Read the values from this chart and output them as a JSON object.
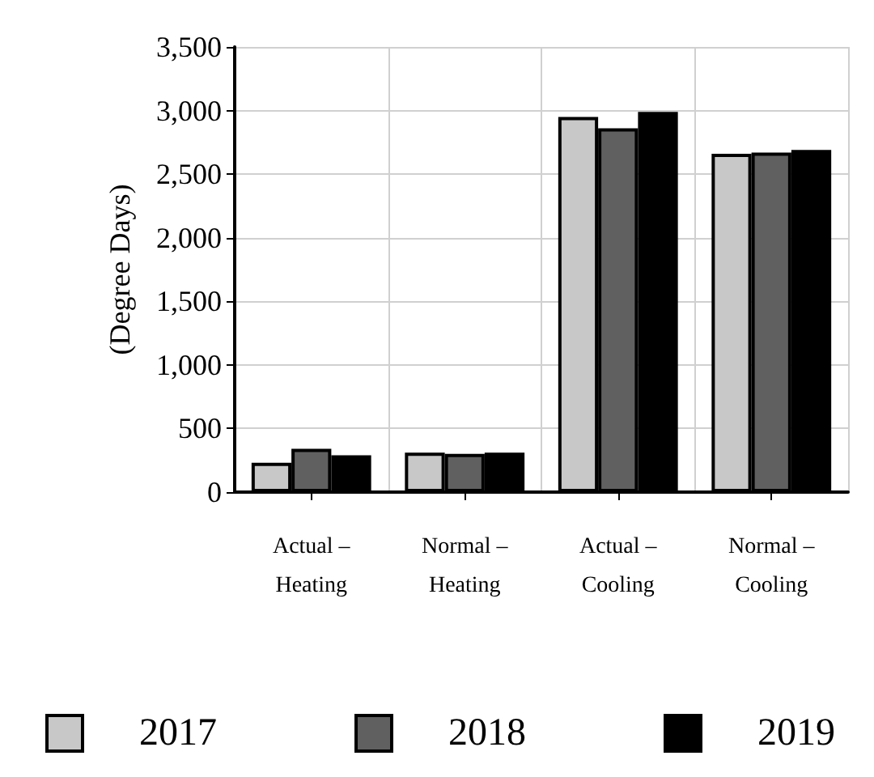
{
  "chart_data": {
    "type": "bar",
    "ylabel": "(Degree Days)",
    "categories": [
      "Actual –\nHeating",
      "Normal –\nHeating",
      "Actual –\nCooling",
      "Normal –\nCooling"
    ],
    "series": [
      {
        "name": "2017",
        "color": "#c8c8c8",
        "values": [
          230,
          310,
          2950,
          2660
        ]
      },
      {
        "name": "2018",
        "color": "#606060",
        "values": [
          340,
          300,
          2860,
          2670
        ]
      },
      {
        "name": "2019",
        "color": "#000000",
        "values": [
          290,
          310,
          2990,
          2690
        ]
      }
    ],
    "ylim": [
      0,
      3500
    ],
    "yticks": [
      0,
      500,
      {
        "value": 1000,
        "label": "1,000"
      },
      {
        "value": 1500,
        "label": "1,500"
      },
      {
        "value": 2000,
        "label": "2,000"
      },
      {
        "value": 2500,
        "label": "2,500"
      },
      {
        "value": 3000,
        "label": "3,000"
      },
      {
        "value": 3500,
        "label": "3,500"
      }
    ],
    "grid": true,
    "legend": "bottom"
  }
}
